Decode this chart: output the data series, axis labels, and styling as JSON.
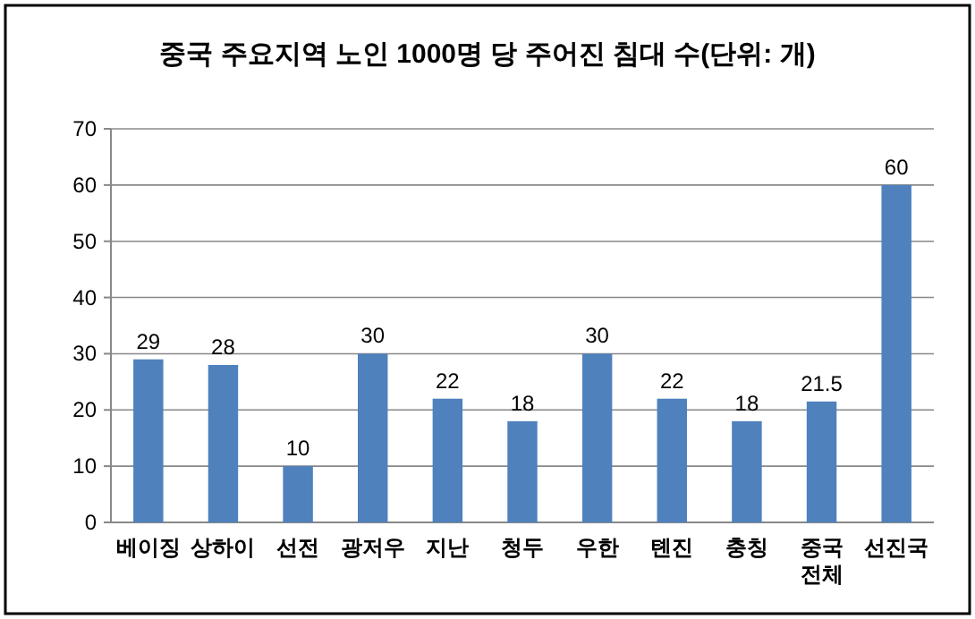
{
  "chart_data": {
    "type": "bar",
    "title": "중국 주요지역 노인 1000명 당 주어진 침대 수(단위: 개)",
    "categories": [
      "베이징",
      "상하이",
      "선전",
      "광저우",
      "지난",
      "청두",
      "우한",
      "톈진",
      "충칭",
      "중국 전체",
      "선진국"
    ],
    "values": [
      29,
      28,
      10,
      30,
      22,
      18,
      30,
      22,
      18,
      21.5,
      60
    ],
    "color": "#4f81bd",
    "ylim": [
      0,
      70
    ],
    "yticks": [
      0,
      10,
      20,
      30,
      40,
      50,
      60,
      70
    ],
    "grid": "y",
    "data_labels": true
  }
}
